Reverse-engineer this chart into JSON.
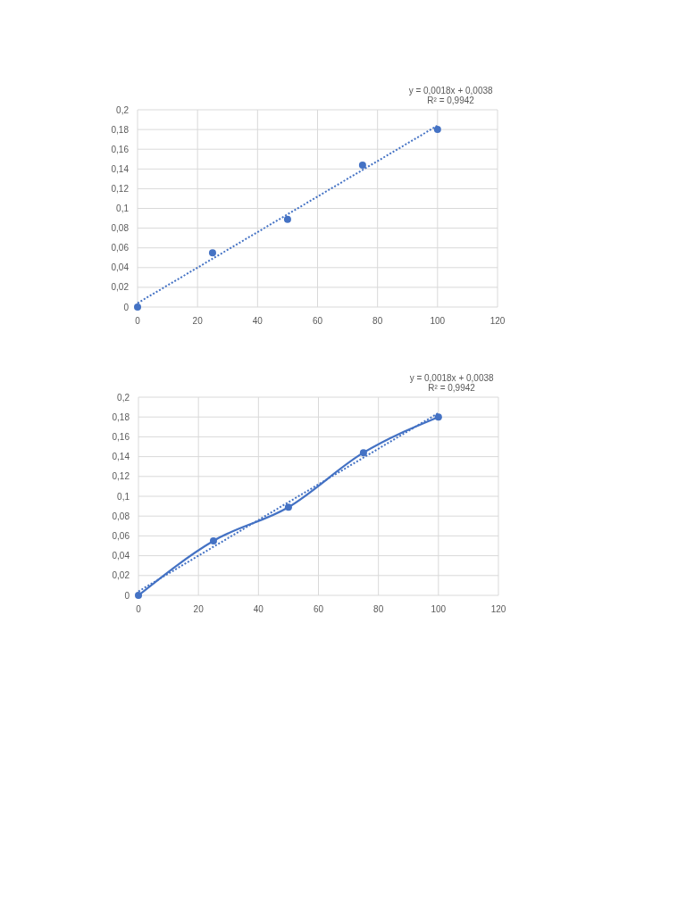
{
  "chart_data": [
    {
      "type": "scatter",
      "annotations": [
        "y = 0,0018x + 0,0038",
        "R² = 0,9942"
      ],
      "xlim": [
        0,
        120
      ],
      "xticks": [
        0,
        20,
        40,
        60,
        80,
        100,
        120
      ],
      "ylim": [
        0,
        0.2
      ],
      "yticks": [
        0,
        {
          "value": 0.02,
          "label": "0,02"
        },
        {
          "value": 0.04,
          "label": "0,04"
        },
        {
          "value": 0.06,
          "label": "0,06"
        },
        {
          "value": 0.08,
          "label": "0,08"
        },
        {
          "value": 0.1,
          "label": "0,1"
        },
        {
          "value": 0.12,
          "label": "0,12"
        },
        {
          "value": 0.14,
          "label": "0,14"
        },
        {
          "value": 0.16,
          "label": "0,16"
        },
        {
          "value": 0.18,
          "label": "0,18"
        },
        {
          "value": 0.2,
          "label": "0,2"
        }
      ],
      "grid": true,
      "series": [
        {
          "color": "#4472c4",
          "marker": "circle",
          "x": [
            0,
            25,
            50,
            75,
            100
          ],
          "values": [
            0,
            0.055,
            0.089,
            0.144,
            0.18
          ]
        },
        {
          "type": "line",
          "color": "#4472c4",
          "marker": "none",
          "line_style": "dotted",
          "x": [
            0,
            100
          ],
          "values": [
            0.004,
            0.184
          ]
        }
      ]
    },
    {
      "type": "line",
      "annotations": [
        "y = 0,0018x + 0,0038",
        "R² = 0,9942"
      ],
      "xlim": [
        0,
        120
      ],
      "xticks": [
        0,
        20,
        40,
        60,
        80,
        100,
        120
      ],
      "ylim": [
        0,
        0.2
      ],
      "yticks": [
        0,
        {
          "value": 0.02,
          "label": "0,02"
        },
        {
          "value": 0.04,
          "label": "0,04"
        },
        {
          "value": 0.06,
          "label": "0,06"
        },
        {
          "value": 0.08,
          "label": "0,08"
        },
        {
          "value": 0.1,
          "label": "0,1"
        },
        {
          "value": 0.12,
          "label": "0,12"
        },
        {
          "value": 0.14,
          "label": "0,14"
        },
        {
          "value": 0.16,
          "label": "0,16"
        },
        {
          "value": 0.18,
          "label": "0,18"
        },
        {
          "value": 0.2,
          "label": "0,2"
        }
      ],
      "grid": true,
      "series": [
        {
          "color": "#4472c4",
          "marker": "circle",
          "line_style": "solid",
          "x": [
            0,
            25,
            50,
            75,
            100
          ],
          "values": [
            0,
            0.055,
            0.089,
            0.144,
            0.18
          ]
        },
        {
          "type": "line",
          "color": "#4472c4",
          "marker": "none",
          "line_style": "dotted",
          "x": [
            0,
            100
          ],
          "values": [
            0.004,
            0.184
          ]
        }
      ]
    }
  ]
}
